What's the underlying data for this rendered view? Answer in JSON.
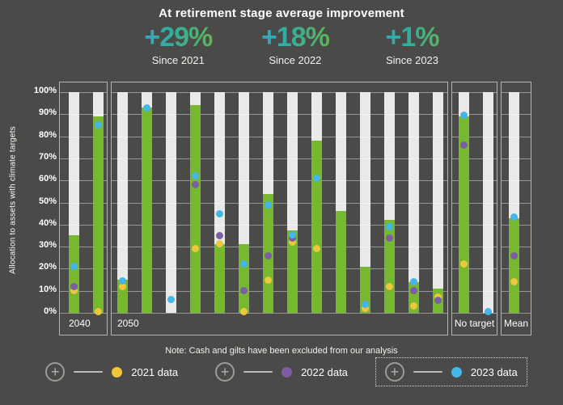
{
  "header": {
    "title": "At retirement stage average improvement",
    "stats": [
      {
        "value": "+29%",
        "label": "Since 2021"
      },
      {
        "value": "+18%",
        "label": "Since 2022"
      },
      {
        "value": "+1%",
        "label": "Since 2023"
      }
    ]
  },
  "chart_data": {
    "type": "bar",
    "title": "At retirement stage average improvement",
    "ylabel": "Allocation to assets with climate targets",
    "ylim": [
      0,
      100
    ],
    "ytick_labels": [
      "100%",
      "90%",
      "80%",
      "70%",
      "60%",
      "50%",
      "40%",
      "30%",
      "20%",
      "10%",
      "0%"
    ],
    "grid": true,
    "note": "Note: Cash and gilts have been excluded from our analysis",
    "legend_position": "bottom",
    "legend": [
      {
        "year": "2021",
        "label": "2021 data",
        "color": "#eec73d"
      },
      {
        "year": "2022",
        "label": "2022 data",
        "color": "#7d5ea3"
      },
      {
        "year": "2023",
        "label": "2023 data",
        "color": "#45b6e8",
        "boxed": true
      }
    ],
    "groups": [
      {
        "label": "2040",
        "bars": [
          {
            "bar": 35,
            "y2021": 10,
            "y2022": 12,
            "y2023": 21
          },
          {
            "bar": 89,
            "y2021": 0.5,
            "y2022": null,
            "y2023": 85
          }
        ]
      },
      {
        "label": "2050",
        "bars": [
          {
            "bar": 15,
            "y2021": 12,
            "y2022": null,
            "y2023": 14.5
          },
          {
            "bar": 93,
            "y2021": null,
            "y2022": null,
            "y2023": 93
          },
          {
            "bar": 0,
            "y2021": null,
            "y2022": null,
            "y2023": 6
          },
          {
            "bar": 94,
            "y2021": 29,
            "y2022": 58,
            "y2023": 62
          },
          {
            "bar": 31,
            "y2021": 31.5,
            "y2022": 35,
            "y2023": 45
          },
          {
            "bar": 31,
            "y2021": 0.5,
            "y2022": 10,
            "y2023": 22
          },
          {
            "bar": 54,
            "y2021": 15,
            "y2022": 26,
            "y2023": 49
          },
          {
            "bar": 37.5,
            "y2021": 32,
            "y2022": 34,
            "y2023": 35.5
          },
          {
            "bar": 78,
            "y2021": 29,
            "y2022": null,
            "y2023": 61
          },
          {
            "bar": 46,
            "y2021": null,
            "y2022": null,
            "y2023": null
          },
          {
            "bar": 21,
            "y2021": 2,
            "y2022": null,
            "y2023": 4
          },
          {
            "bar": 42,
            "y2021": 12,
            "y2022": 34,
            "y2023": 39
          },
          {
            "bar": 14,
            "y2021": 3,
            "y2022": 10,
            "y2023": 14
          },
          {
            "bar": 11,
            "y2021": 7,
            "y2022": 5.5,
            "y2023": null
          }
        ]
      },
      {
        "label": "No target",
        "bars": [
          {
            "bar": 89,
            "y2021": 22,
            "y2022": 76,
            "y2023": 89.5
          },
          {
            "bar": 0,
            "y2021": null,
            "y2022": null,
            "y2023": 0.5
          }
        ]
      },
      {
        "label": "Mean",
        "bars": [
          {
            "bar": 43,
            "y2021": 14,
            "y2022": 26,
            "y2023": 43.5
          }
        ]
      }
    ]
  },
  "colors": {
    "background": "#4a4a48",
    "bar_green": "#76b82e",
    "track_gray": "#e9e9e7",
    "gradient_from": "#3ba4d9",
    "gradient_mid": "#2fae9e",
    "gradient_to": "#7cbb28"
  }
}
